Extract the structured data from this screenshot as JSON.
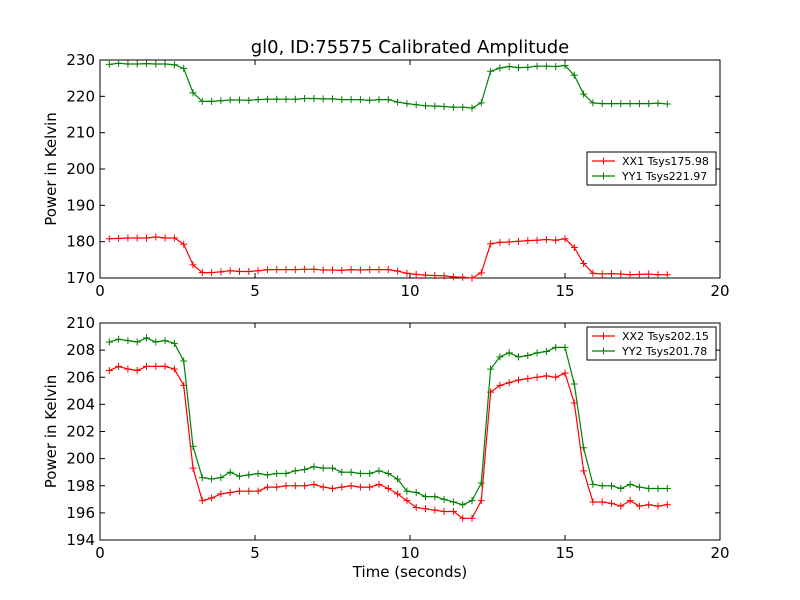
{
  "chart_data": [
    {
      "type": "line",
      "title": "gl0, ID:75575 Calibrated Amplitude",
      "xlabel": "",
      "ylabel": "Power in Kelvin",
      "xlim": [
        0,
        20
      ],
      "ylim": [
        170,
        230
      ],
      "xticks": [
        0,
        5,
        10,
        15,
        20
      ],
      "yticks": [
        170,
        180,
        190,
        200,
        210,
        220,
        230
      ],
      "grid": false,
      "legend_position": "right",
      "x": [
        0.3,
        0.6,
        0.9,
        1.2,
        1.5,
        1.8,
        2.1,
        2.4,
        2.7,
        3.0,
        3.3,
        3.6,
        3.9,
        4.2,
        4.5,
        4.8,
        5.1,
        5.4,
        5.7,
        6.0,
        6.3,
        6.6,
        6.9,
        7.2,
        7.5,
        7.8,
        8.1,
        8.4,
        8.7,
        9.0,
        9.3,
        9.6,
        9.9,
        10.2,
        10.5,
        10.8,
        11.1,
        11.4,
        11.7,
        12.0,
        12.3,
        12.6,
        12.9,
        13.2,
        13.5,
        13.8,
        14.1,
        14.4,
        14.7,
        15.0,
        15.3,
        15.6,
        15.9,
        16.2,
        16.5,
        16.8,
        17.1,
        17.4,
        17.7,
        18.0,
        18.3
      ],
      "series": [
        {
          "name": "XX1 Tsys175.98",
          "color": "#ff0000",
          "values": [
            180.8,
            180.9,
            181.0,
            181.0,
            181.0,
            181.3,
            181.0,
            181.0,
            179.3,
            173.6,
            171.5,
            171.5,
            171.7,
            172.0,
            171.8,
            171.8,
            172.0,
            172.3,
            172.3,
            172.3,
            172.3,
            172.4,
            172.4,
            172.2,
            172.2,
            172.1,
            172.3,
            172.2,
            172.3,
            172.3,
            172.3,
            171.9,
            171.3,
            171.0,
            170.8,
            170.7,
            170.6,
            170.3,
            170.2,
            170.0,
            171.4,
            179.4,
            179.8,
            179.9,
            180.1,
            180.3,
            180.4,
            180.6,
            180.4,
            180.8,
            178.4,
            174.0,
            171.3,
            171.1,
            171.2,
            171.1,
            170.9,
            171.0,
            171.1,
            170.9,
            170.9
          ]
        },
        {
          "name": "YY1 Tsys221.97",
          "color": "#008000",
          "values": [
            228.8,
            229.1,
            228.9,
            228.9,
            229.0,
            228.9,
            228.9,
            228.7,
            227.7,
            221.0,
            218.6,
            218.6,
            218.8,
            219.0,
            219.0,
            218.9,
            219.1,
            219.2,
            219.2,
            219.2,
            219.2,
            219.4,
            219.4,
            219.3,
            219.3,
            219.1,
            219.1,
            219.1,
            218.9,
            219.1,
            219.1,
            218.4,
            218.0,
            217.7,
            217.4,
            217.3,
            217.2,
            217.0,
            217.0,
            216.8,
            218.2,
            226.9,
            227.8,
            228.2,
            227.9,
            228.0,
            228.3,
            228.3,
            228.2,
            228.5,
            225.8,
            220.6,
            218.2,
            218.0,
            218.0,
            218.0,
            218.0,
            218.0,
            218.0,
            218.1,
            217.9
          ]
        }
      ]
    },
    {
      "type": "line",
      "title": "",
      "xlabel": "Time (seconds)",
      "ylabel": "Power in Kelvin",
      "xlim": [
        0,
        20
      ],
      "ylim": [
        194,
        210
      ],
      "xticks": [
        0,
        5,
        10,
        15,
        20
      ],
      "yticks": [
        194,
        196,
        198,
        200,
        202,
        204,
        206,
        208,
        210
      ],
      "grid": false,
      "legend_position": "top-right",
      "x": [
        0.3,
        0.6,
        0.9,
        1.2,
        1.5,
        1.8,
        2.1,
        2.4,
        2.7,
        3.0,
        3.3,
        3.6,
        3.9,
        4.2,
        4.5,
        4.8,
        5.1,
        5.4,
        5.7,
        6.0,
        6.3,
        6.6,
        6.9,
        7.2,
        7.5,
        7.8,
        8.1,
        8.4,
        8.7,
        9.0,
        9.3,
        9.6,
        9.9,
        10.2,
        10.5,
        10.8,
        11.1,
        11.4,
        11.7,
        12.0,
        12.3,
        12.6,
        12.9,
        13.2,
        13.5,
        13.8,
        14.1,
        14.4,
        14.7,
        15.0,
        15.3,
        15.6,
        15.9,
        16.2,
        16.5,
        16.8,
        17.1,
        17.4,
        17.7,
        18.0,
        18.3
      ],
      "series": [
        {
          "name": "XX2 Tsys202.15",
          "color": "#ff0000",
          "values": [
            206.5,
            206.8,
            206.6,
            206.5,
            206.8,
            206.8,
            206.8,
            206.6,
            205.4,
            199.3,
            196.9,
            197.1,
            197.4,
            197.5,
            197.6,
            197.6,
            197.6,
            197.9,
            197.9,
            198.0,
            198.0,
            198.0,
            198.1,
            197.9,
            197.8,
            197.9,
            198.0,
            197.9,
            197.9,
            198.1,
            197.8,
            197.4,
            196.9,
            196.4,
            196.3,
            196.2,
            196.1,
            196.1,
            195.6,
            195.6,
            196.9,
            204.9,
            205.4,
            205.6,
            205.8,
            205.9,
            206.0,
            206.1,
            206.0,
            206.3,
            204.1,
            199.1,
            196.8,
            196.8,
            196.7,
            196.5,
            196.9,
            196.5,
            196.6,
            196.5,
            196.6
          ]
        },
        {
          "name": "YY2 Tsys201.78",
          "color": "#008000",
          "values": [
            208.6,
            208.8,
            208.7,
            208.6,
            208.9,
            208.6,
            208.7,
            208.5,
            207.2,
            200.9,
            198.6,
            198.5,
            198.6,
            199.0,
            198.7,
            198.8,
            198.9,
            198.8,
            198.9,
            198.9,
            199.1,
            199.2,
            199.4,
            199.3,
            199.3,
            199.0,
            199.0,
            198.9,
            198.9,
            199.1,
            198.9,
            198.5,
            197.6,
            197.5,
            197.2,
            197.2,
            197.0,
            196.8,
            196.6,
            196.9,
            198.2,
            206.6,
            207.5,
            207.8,
            207.5,
            207.6,
            207.8,
            207.9,
            208.2,
            208.2,
            205.5,
            200.8,
            198.1,
            198.0,
            198.0,
            197.8,
            198.1,
            197.9,
            197.8,
            197.8,
            197.8
          ]
        }
      ]
    }
  ]
}
